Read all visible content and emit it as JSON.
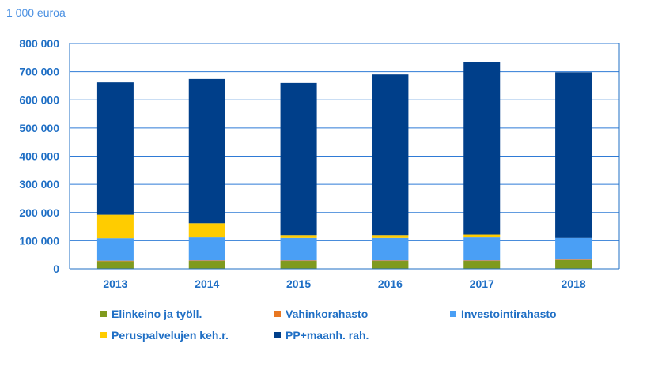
{
  "chart_data": {
    "type": "bar",
    "stacked": true,
    "unit_label": "1 000 euroa",
    "categories": [
      "2013",
      "2014",
      "2015",
      "2016",
      "2017",
      "2018"
    ],
    "ylim": [
      0,
      800000
    ],
    "yticks": [
      0,
      100000,
      200000,
      300000,
      400000,
      500000,
      600000,
      700000,
      800000
    ],
    "ytick_labels": [
      "0",
      "100 000",
      "200 000",
      "300 000",
      "400 000",
      "500 000",
      "600 000",
      "700 000",
      "800 000"
    ],
    "grid": true,
    "legend_position": "bottom",
    "series": [
      {
        "name": "Elinkeino ja työll.",
        "color": "#7F9A1E",
        "values": [
          27000,
          28000,
          28000,
          28000,
          28000,
          31000
        ]
      },
      {
        "name": "Vahinkorahasto",
        "color": "#E87722",
        "values": [
          2000,
          2000,
          2000,
          2000,
          2000,
          2000
        ]
      },
      {
        "name": "Investointirahasto",
        "color": "#4A9FF5",
        "values": [
          80000,
          82000,
          80000,
          80000,
          82000,
          77000
        ]
      },
      {
        "name": "Peruspalvelujen keh.r.",
        "color": "#FFCC00",
        "values": [
          83000,
          50000,
          10000,
          10000,
          10000,
          0
        ]
      },
      {
        "name": "PP+maanh. rah.",
        "color": "#003F8A",
        "values": [
          470000,
          512000,
          540000,
          570000,
          613000,
          588000
        ]
      }
    ]
  }
}
